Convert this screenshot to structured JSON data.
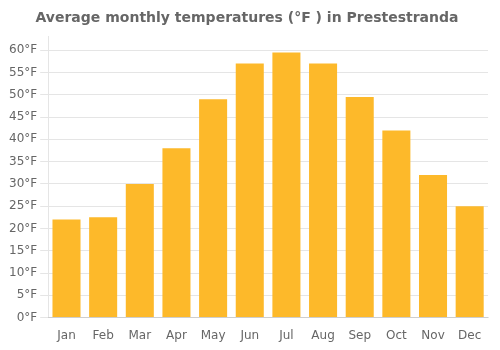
{
  "chart_data": {
    "type": "bar",
    "title": "Average monthly temperatures (°F ) in Prestestranda",
    "categories": [
      "Jan",
      "Feb",
      "Mar",
      "Apr",
      "May",
      "Jun",
      "Jul",
      "Aug",
      "Sep",
      "Oct",
      "Nov",
      "Dec"
    ],
    "values": [
      22,
      22.5,
      30,
      38,
      49,
      57,
      59.5,
      57,
      49.5,
      42,
      32,
      25
    ],
    "color": "#FDB92A",
    "ylim": [
      0,
      63
    ],
    "yticks": [
      {
        "value": 0,
        "label": "0°F"
      },
      {
        "value": 5,
        "label": "5°F"
      },
      {
        "value": 10,
        "label": "10°F"
      },
      {
        "value": 15,
        "label": "15°F"
      },
      {
        "value": 20,
        "label": "20°F"
      },
      {
        "value": 25,
        "label": "25°F"
      },
      {
        "value": 30,
        "label": "30°F"
      },
      {
        "value": 35,
        "label": "35°F"
      },
      {
        "value": 40,
        "label": "40°F"
      },
      {
        "value": 45,
        "label": "45°F"
      },
      {
        "value": 50,
        "label": "50°F"
      },
      {
        "value": 55,
        "label": "55°F"
      },
      {
        "value": 60,
        "label": "60°F"
      }
    ],
    "grid": true
  }
}
